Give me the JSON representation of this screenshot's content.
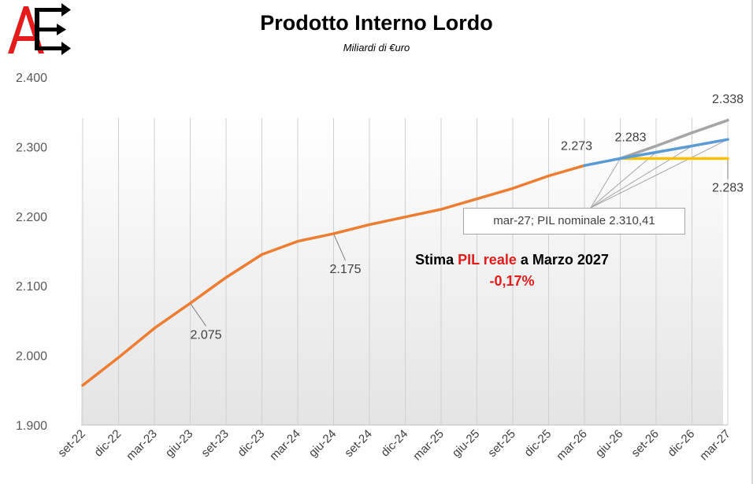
{
  "header": {
    "logo_text": "AE",
    "title": "Prodotto Interno Lordo",
    "subtitle": "Miliardi di €uro"
  },
  "annotation": {
    "prefix": "Stima ",
    "highlight": "PIL reale",
    "suffix": " a Marzo 2027",
    "value": "-0,17%"
  },
  "callout": {
    "text": "mar-27; PIL nominale 2.310,41"
  },
  "colors": {
    "historical": "#ed7d31",
    "nominal": "#5b9bd5",
    "upper": "#a5a5a5",
    "flat": "#ffc000",
    "annotation_red": "#e31c1c"
  },
  "chart_data": {
    "type": "line",
    "title": "Prodotto Interno Lordo",
    "subtitle": "Miliardi di €uro",
    "xlabel": "",
    "ylabel": "",
    "ylim": [
      1900,
      2400
    ],
    "yticks": [
      1900,
      2000,
      2100,
      2200,
      2300,
      2400
    ],
    "ytick_labels": [
      "1.900",
      "2.000",
      "2.100",
      "2.200",
      "2.300",
      "2.400"
    ],
    "grid": "vertical",
    "categories": [
      "set-22",
      "dic-22",
      "mar-23",
      "giu-23",
      "set-23",
      "dic-23",
      "mar-24",
      "giu-24",
      "set-24",
      "dic-24",
      "mar-25",
      "giu-25",
      "set-25",
      "dic-25",
      "mar-26",
      "giu-26",
      "set-26",
      "dic-26",
      "mar-27"
    ],
    "series": [
      {
        "key": "historical",
        "values": [
          1957,
          1997,
          2039,
          2075,
          2112,
          2145,
          2164,
          2175,
          2188,
          2199,
          2210,
          2225,
          2240,
          2258,
          2273,
          null,
          null,
          null,
          null
        ]
      },
      {
        "key": "upper",
        "values": [
          null,
          null,
          null,
          null,
          null,
          null,
          null,
          null,
          null,
          null,
          null,
          null,
          null,
          null,
          null,
          2283,
          2301,
          2320,
          2338
        ]
      },
      {
        "key": "nominal",
        "values": [
          null,
          null,
          null,
          null,
          null,
          null,
          null,
          null,
          null,
          null,
          null,
          null,
          null,
          null,
          2273,
          2283,
          2292,
          2301,
          2310.41
        ]
      },
      {
        "key": "flat",
        "values": [
          null,
          null,
          null,
          null,
          null,
          null,
          null,
          null,
          null,
          null,
          null,
          null,
          null,
          null,
          null,
          2283,
          2283,
          2283,
          2283
        ]
      }
    ],
    "data_labels": [
      {
        "text": "2.075",
        "series": "historical",
        "index": 3
      },
      {
        "text": "2.175",
        "series": "historical",
        "index": 7
      },
      {
        "text": "2.273",
        "series": "historical",
        "index": 14
      },
      {
        "text": "2.283",
        "series": "nominal",
        "index": 15
      },
      {
        "text": "2.338",
        "series": "upper",
        "index": 18
      },
      {
        "text": "2.283",
        "series": "flat",
        "index": 18
      }
    ]
  }
}
